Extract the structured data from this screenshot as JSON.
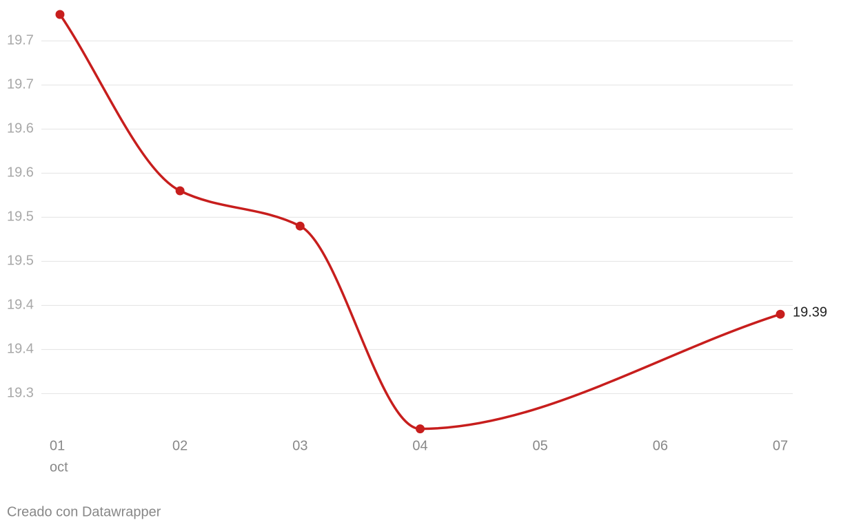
{
  "chart_data": {
    "type": "line",
    "x": [
      1,
      2,
      3,
      4,
      7
    ],
    "values": [
      19.73,
      19.53,
      19.49,
      19.26,
      19.39
    ],
    "color": "#c71e1d",
    "xlim": [
      1,
      7
    ],
    "xticks": [
      {
        "value": 1,
        "label": "01"
      },
      {
        "value": 2,
        "label": "02"
      },
      {
        "value": 3,
        "label": "03"
      },
      {
        "value": 4,
        "label": "04"
      },
      {
        "value": 5,
        "label": "05"
      },
      {
        "value": 6,
        "label": "06"
      },
      {
        "value": 7,
        "label": "07"
      }
    ],
    "x_month_label": "oct",
    "ylim": [
      19.25,
      19.75
    ],
    "yticks": [
      19.3,
      {
        "value": 19.35,
        "label": "19.4"
      },
      19.4,
      {
        "value": 19.45,
        "label": "19.5"
      },
      19.5,
      {
        "value": 19.55,
        "label": "19.6"
      },
      19.6,
      {
        "value": 19.65,
        "label": "19.7"
      },
      19.7
    ],
    "grid": true,
    "credit": "Creado con Datawrapper"
  }
}
